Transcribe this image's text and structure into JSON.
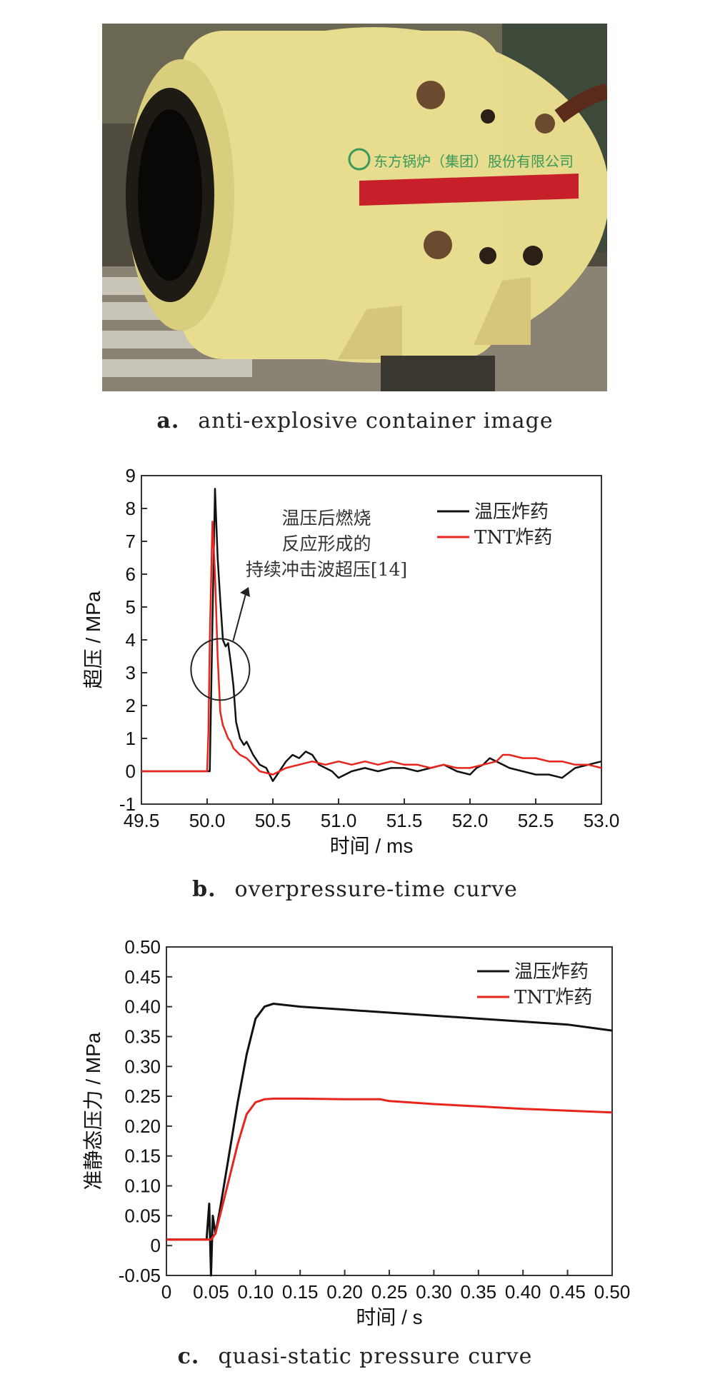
{
  "photo": {
    "caption_letter": "a.",
    "caption_text": "anti-explosive container image",
    "colors": {
      "tank": "#e8dc8c",
      "stripe": "#c8202a",
      "floor": "#8a8273",
      "background": "#5a5a4a"
    },
    "tank_lettering": "东方锅炉（集团）股份有限公司"
  },
  "chart_b": {
    "caption_letter": "b.",
    "caption_text": "overpressure-time curve"
  },
  "chart_c": {
    "caption_letter": "c.",
    "caption_text": "quasi-static pressure curve"
  },
  "chart_data": [
    {
      "id": "b",
      "type": "line",
      "xlabel": "时间 / ms",
      "ylabel": "超压 / MPa",
      "xlim": [
        49.5,
        53.0
      ],
      "ylim": [
        -1,
        9
      ],
      "xticks": [
        "49.5",
        "50.0",
        "50.5",
        "51.0",
        "51.5",
        "52.0",
        "52.5",
        "53.0"
      ],
      "yticks": [
        "-1",
        "0",
        "1",
        "2",
        "3",
        "4",
        "5",
        "6",
        "7",
        "8",
        "9"
      ],
      "legend_position": "top-right",
      "grid": false,
      "annotation": {
        "lines": [
          "温压后燃烧",
          "反应形成的",
          "持续冲击波超压[14]"
        ],
        "circle_center": [
          50.1,
          3.1
        ]
      },
      "series": [
        {
          "name": "温压炸药",
          "color": "#111111",
          "x": [
            49.5,
            50.0,
            50.02,
            50.04,
            50.06,
            50.08,
            50.1,
            50.12,
            50.14,
            50.16,
            50.18,
            50.2,
            50.22,
            50.25,
            50.28,
            50.3,
            50.35,
            50.4,
            50.45,
            50.5,
            50.55,
            50.6,
            50.65,
            50.7,
            50.75,
            50.8,
            50.85,
            50.9,
            50.95,
            51.0,
            51.05,
            51.1,
            51.2,
            51.3,
            51.4,
            51.5,
            51.6,
            51.7,
            51.8,
            51.9,
            52.0,
            52.05,
            52.1,
            52.15,
            52.2,
            52.25,
            52.3,
            52.4,
            52.5,
            52.6,
            52.7,
            52.8,
            52.9,
            53.0
          ],
          "values": [
            0,
            0,
            0,
            4.5,
            8.6,
            6.5,
            5.2,
            4.0,
            3.8,
            3.9,
            3.3,
            2.6,
            1.5,
            1.0,
            0.8,
            0.9,
            0.5,
            0.2,
            0.1,
            -0.3,
            0.0,
            0.3,
            0.5,
            0.4,
            0.6,
            0.5,
            0.2,
            0.1,
            0.0,
            -0.2,
            -0.1,
            0.0,
            0.1,
            0.0,
            0.1,
            0.1,
            0.0,
            0.1,
            0.2,
            0.0,
            -0.1,
            0.1,
            0.2,
            0.4,
            0.3,
            0.2,
            0.1,
            0.0,
            -0.1,
            -0.1,
            -0.2,
            0.1,
            0.2,
            0.3
          ]
        },
        {
          "name": "TNT炸药",
          "color": "#e8251d",
          "x": [
            49.5,
            50.0,
            50.01,
            50.02,
            50.04,
            50.06,
            50.08,
            50.1,
            50.12,
            50.14,
            50.16,
            50.18,
            50.2,
            50.25,
            50.3,
            50.35,
            50.4,
            50.5,
            50.6,
            50.7,
            50.8,
            50.9,
            51.0,
            51.1,
            51.2,
            51.3,
            51.4,
            51.5,
            51.6,
            51.7,
            51.8,
            51.9,
            52.0,
            52.1,
            52.2,
            52.25,
            52.3,
            52.4,
            52.5,
            52.6,
            52.7,
            52.8,
            52.9,
            53.0
          ],
          "values": [
            0,
            0,
            1.2,
            4.0,
            7.6,
            6.0,
            3.5,
            1.8,
            1.4,
            1.2,
            1.0,
            0.9,
            0.7,
            0.5,
            0.4,
            0.2,
            0.0,
            -0.1,
            0.1,
            0.2,
            0.3,
            0.2,
            0.3,
            0.2,
            0.3,
            0.2,
            0.3,
            0.2,
            0.2,
            0.1,
            0.2,
            0.1,
            0.1,
            0.2,
            0.3,
            0.5,
            0.5,
            0.4,
            0.4,
            0.3,
            0.3,
            0.2,
            0.2,
            0.1
          ]
        }
      ]
    },
    {
      "id": "c",
      "type": "line",
      "xlabel": "时间 / s",
      "ylabel": "准静态压力 / MPa",
      "xlim": [
        0,
        0.5
      ],
      "ylim": [
        -0.05,
        0.5
      ],
      "xticks": [
        "0",
        "0.05",
        "0.10",
        "0.15",
        "0.20",
        "0.25",
        "0.30",
        "0.35",
        "0.40",
        "0.45",
        "0.50"
      ],
      "yticks": [
        "-0.05",
        "0",
        "0.05",
        "0.10",
        "0.15",
        "0.20",
        "0.25",
        "0.30",
        "0.35",
        "0.40",
        "0.45",
        "0.50"
      ],
      "legend_position": "top-right",
      "grid": false,
      "series": [
        {
          "name": "温压炸药",
          "color": "#111111",
          "x": [
            0,
            0.045,
            0.048,
            0.05,
            0.052,
            0.055,
            0.06,
            0.07,
            0.08,
            0.09,
            0.1,
            0.11,
            0.12,
            0.15,
            0.2,
            0.25,
            0.3,
            0.35,
            0.4,
            0.45,
            0.5
          ],
          "values": [
            0.01,
            0.01,
            0.07,
            -0.05,
            0.05,
            0.02,
            0.06,
            0.15,
            0.24,
            0.32,
            0.38,
            0.4,
            0.405,
            0.4,
            0.395,
            0.39,
            0.385,
            0.38,
            0.375,
            0.37,
            0.36
          ]
        },
        {
          "name": "TNT炸药",
          "color": "#e8251d",
          "x": [
            0,
            0.05,
            0.055,
            0.06,
            0.07,
            0.08,
            0.09,
            0.1,
            0.11,
            0.12,
            0.15,
            0.2,
            0.24,
            0.25,
            0.3,
            0.35,
            0.4,
            0.45,
            0.5
          ],
          "values": [
            0.01,
            0.01,
            0.02,
            0.05,
            0.11,
            0.17,
            0.22,
            0.24,
            0.245,
            0.246,
            0.246,
            0.245,
            0.245,
            0.242,
            0.237,
            0.233,
            0.229,
            0.226,
            0.223
          ]
        }
      ]
    }
  ]
}
